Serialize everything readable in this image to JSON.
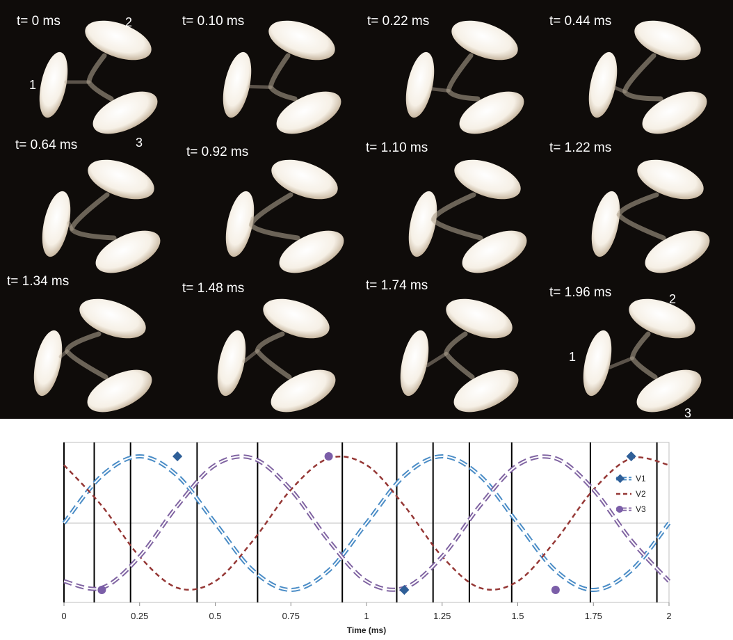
{
  "frames": [
    {
      "label": "t= 0 ms"
    },
    {
      "label": "t= 0.10 ms"
    },
    {
      "label": "t= 0.22 ms"
    },
    {
      "label": "t= 0.44 ms"
    },
    {
      "label": "t= 0.64 ms"
    },
    {
      "label": "t= 0.92 ms"
    },
    {
      "label": "t= 1.10 ms"
    },
    {
      "label": "t= 1.22 ms"
    },
    {
      "label": "t= 1.34 ms"
    },
    {
      "label": "t= 1.48 ms"
    },
    {
      "label": "t= 1.74 ms"
    },
    {
      "label": "t= 1.96 ms"
    }
  ],
  "drop_labels": {
    "d1": "1",
    "d2": "2",
    "d3": "3"
  },
  "colors": {
    "background": "#0f0c0a",
    "v1": "#4a8cc6",
    "v2": "#953735",
    "v3": "#8064a2",
    "markers_v1": "#2f5f98",
    "markers_v3": "#7b5ea8"
  },
  "chart_data": {
    "type": "line",
    "xlabel": "Time (ms)",
    "xlim": [
      0,
      2
    ],
    "x_ticks": [
      "0",
      "0.25",
      "0.5",
      "0.75",
      "1",
      "1.25",
      "1.5",
      "1.75",
      "2"
    ],
    "ylim": [
      -1,
      1
    ],
    "y_axis_labels": "none",
    "horizontal_gridline_at": 0,
    "frame_time_markers": [
      0,
      0.1,
      0.22,
      0.44,
      0.64,
      0.92,
      1.1,
      1.22,
      1.34,
      1.48,
      1.74,
      1.96
    ],
    "series": [
      {
        "name": "V1",
        "style": "double dashed line with diamond markers",
        "color": "#4a8cc6",
        "x": [
          0,
          0.125,
          0.25,
          0.375,
          0.5,
          0.625,
          0.75,
          0.875,
          1,
          1.125,
          1.25,
          1.375,
          1.5,
          1.625,
          1.75,
          1.875,
          2
        ],
        "values": [
          0,
          0.71,
          1.0,
          0.71,
          0,
          -0.71,
          -1.0,
          -0.71,
          0,
          0.71,
          1.0,
          0.71,
          0,
          -0.71,
          -1.0,
          -0.71,
          0
        ],
        "markers_x": [
          0.375,
          1.125,
          1.875
        ],
        "markers_y": [
          1.0,
          -1.0,
          1.0
        ]
      },
      {
        "name": "V2",
        "style": "dashed line",
        "color": "#953735",
        "x": [
          0,
          0.125,
          0.25,
          0.375,
          0.5,
          0.625,
          0.75,
          0.875,
          1,
          1.125,
          1.25,
          1.375,
          1.5,
          1.625,
          1.75,
          1.875,
          2
        ],
        "values": [
          0.87,
          0.26,
          -0.5,
          -0.97,
          -0.87,
          -0.26,
          0.5,
          0.97,
          0.87,
          0.26,
          -0.5,
          -0.97,
          -0.87,
          -0.26,
          0.5,
          0.97,
          0.87
        ],
        "markers_x": [],
        "markers_y": []
      },
      {
        "name": "V3",
        "style": "double dashed line with circle markers",
        "color": "#8064a2",
        "x": [
          0,
          0.125,
          0.25,
          0.375,
          0.5,
          0.625,
          0.75,
          0.875,
          1,
          1.125,
          1.25,
          1.375,
          1.5,
          1.625,
          1.75,
          1.875,
          2
        ],
        "values": [
          -0.87,
          -0.97,
          -0.5,
          0.26,
          0.87,
          0.97,
          0.5,
          -0.26,
          -0.87,
          -0.97,
          -0.5,
          0.26,
          0.87,
          0.97,
          0.5,
          -0.26,
          -0.87
        ],
        "markers_x": [
          0.125,
          0.875,
          1.625
        ],
        "markers_y": [
          -1.0,
          1.0,
          -1.0
        ]
      }
    ],
    "legend": {
      "placement": "right",
      "entries": [
        "V1",
        "V2",
        "V3"
      ]
    }
  }
}
